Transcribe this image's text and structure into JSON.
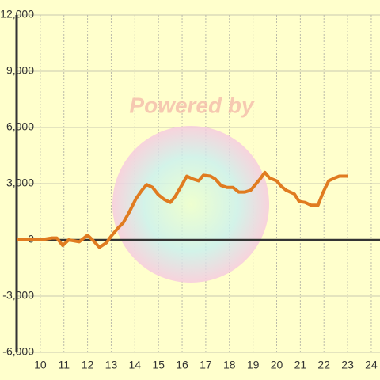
{
  "chart_data": {
    "type": "line",
    "watermark": "Powered by",
    "x": [
      9.0,
      10.0,
      10.5,
      10.7,
      10.95,
      11.2,
      11.65,
      12.0,
      12.25,
      12.5,
      12.8,
      13.0,
      13.3,
      13.5,
      13.75,
      14.05,
      14.3,
      14.5,
      14.75,
      15.0,
      15.25,
      15.5,
      15.7,
      16.0,
      16.2,
      16.45,
      16.7,
      16.9,
      17.2,
      17.4,
      17.65,
      17.9,
      18.15,
      18.4,
      18.65,
      18.9,
      19.1,
      19.3,
      19.5,
      19.7,
      20.0,
      20.2,
      20.4,
      20.75,
      20.95,
      21.2,
      21.45,
      21.75,
      21.95,
      22.2,
      22.45,
      22.65,
      23.0
    ],
    "series": [
      {
        "color": "#e07b20",
        "values": [
          0,
          0,
          100,
          100,
          -300,
          0,
          -100,
          250,
          -50,
          -400,
          -150,
          200,
          650,
          900,
          1450,
          2200,
          2650,
          2950,
          2800,
          2400,
          2150,
          2000,
          2300,
          2950,
          3400,
          3250,
          3150,
          3450,
          3400,
          3250,
          2900,
          2800,
          2800,
          2550,
          2550,
          2650,
          2950,
          3250,
          3600,
          3300,
          3150,
          2850,
          2650,
          2450,
          2050,
          2000,
          1850,
          1850,
          2500,
          3150,
          3300,
          3400,
          3400
        ]
      }
    ],
    "xlim": [
      9,
      24.37
    ],
    "xticks": [
      10,
      11,
      12,
      13,
      14,
      15,
      16,
      17,
      18,
      19,
      20,
      21,
      22,
      23,
      24
    ],
    "ylim": [
      -6000,
      12000
    ],
    "yticks": [
      {
        "value": -6000,
        "label": "-6,000"
      },
      {
        "value": -3000,
        "label": "-3,000"
      },
      0,
      {
        "value": 3000,
        "label": "3,000"
      },
      {
        "value": 6000,
        "label": "6,000"
      },
      {
        "value": 9000,
        "label": "9,000"
      },
      {
        "value": 12000,
        "label": "12,000"
      }
    ],
    "grid": true
  }
}
